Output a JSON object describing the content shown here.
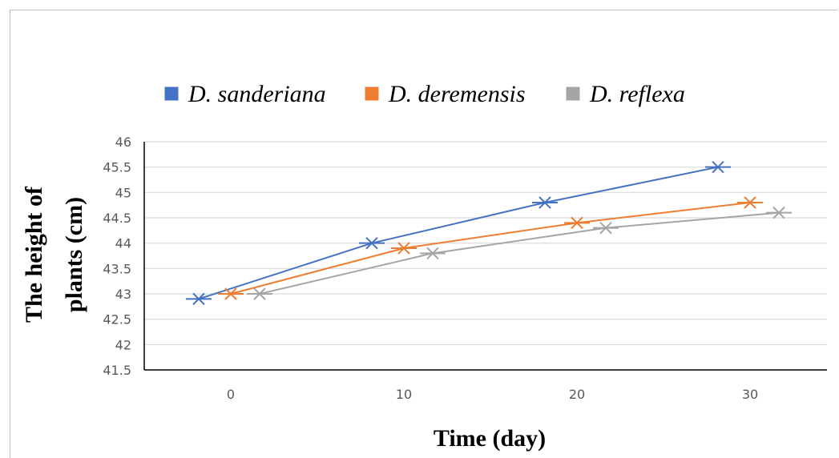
{
  "chart_data": {
    "type": "line",
    "xlabel": "Time (day)",
    "ylabel_lines": [
      "The height of",
      "plants (cm)"
    ],
    "ylim": [
      41.5,
      46
    ],
    "yticks": [
      "41.5",
      "42",
      "42.5",
      "43",
      "43.5",
      "44",
      "44.5",
      "45",
      "45.5",
      "46"
    ],
    "xticks": [
      "0",
      "10",
      "20",
      "30"
    ],
    "x": [
      0,
      10,
      20,
      30
    ],
    "series": [
      {
        "name": "D. sanderiana",
        "color": "#4472c4",
        "values": [
          42.9,
          44.0,
          44.8,
          45.5
        ]
      },
      {
        "name": "D. deremensis",
        "color": "#ed7d31",
        "values": [
          43.0,
          43.9,
          44.4,
          44.8
        ]
      },
      {
        "name": "D. reflexa",
        "color": "#a5a5a5",
        "values": [
          43.0,
          43.8,
          44.3,
          44.6
        ]
      }
    ],
    "grid": true,
    "legend_position": "top",
    "marker": "x-cross"
  }
}
